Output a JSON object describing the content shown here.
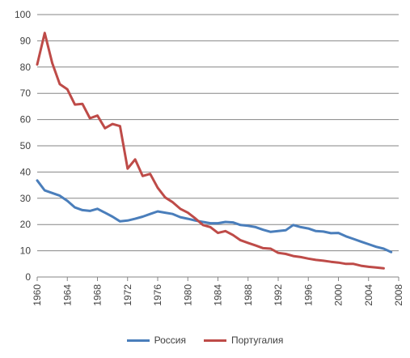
{
  "chart_data": {
    "type": "line",
    "title": "",
    "xlabel": "",
    "ylabel": "",
    "xlim": [
      1960,
      2008
    ],
    "ylim": [
      0,
      100
    ],
    "x_ticks": [
      "1960",
      "1964",
      "1968",
      "1972",
      "1976",
      "1980",
      "1984",
      "1988",
      "1992",
      "1996",
      "2000",
      "2004",
      "2008"
    ],
    "y_ticks": [
      "0",
      "10",
      "20",
      "30",
      "40",
      "50",
      "60",
      "70",
      "80",
      "90",
      "100"
    ],
    "grid": true,
    "legend_position": "bottom",
    "series": [
      {
        "name": "Россия",
        "color": "#4a7ebb",
        "points": [
          [
            1960,
            36.8
          ],
          [
            1961,
            33.0
          ],
          [
            1962,
            32.0
          ],
          [
            1963,
            31.0
          ],
          [
            1964,
            29.0
          ],
          [
            1965,
            26.5
          ],
          [
            1966,
            25.5
          ],
          [
            1967,
            25.2
          ],
          [
            1968,
            26.0
          ],
          [
            1969,
            24.5
          ],
          [
            1970,
            23.0
          ],
          [
            1971,
            21.2
          ],
          [
            1972,
            21.5
          ],
          [
            1973,
            22.2
          ],
          [
            1974,
            23.0
          ],
          [
            1975,
            24.0
          ],
          [
            1976,
            25.0
          ],
          [
            1977,
            24.5
          ],
          [
            1978,
            24.0
          ],
          [
            1979,
            22.8
          ],
          [
            1980,
            22.2
          ],
          [
            1981,
            21.5
          ],
          [
            1982,
            21.0
          ],
          [
            1983,
            20.5
          ],
          [
            1984,
            20.5
          ],
          [
            1985,
            21.0
          ],
          [
            1986,
            20.8
          ],
          [
            1987,
            19.8
          ],
          [
            1988,
            19.5
          ],
          [
            1989,
            19.0
          ],
          [
            1990,
            18.0
          ],
          [
            1991,
            17.2
          ],
          [
            1992,
            17.5
          ],
          [
            1993,
            17.8
          ],
          [
            1994,
            19.8
          ],
          [
            1995,
            19.0
          ],
          [
            1996,
            18.5
          ],
          [
            1997,
            17.5
          ],
          [
            1998,
            17.3
          ],
          [
            1999,
            16.7
          ],
          [
            2000,
            16.8
          ],
          [
            2001,
            15.5
          ],
          [
            2002,
            14.5
          ],
          [
            2003,
            13.5
          ],
          [
            2004,
            12.5
          ],
          [
            2005,
            11.5
          ],
          [
            2006,
            10.8
          ],
          [
            2007,
            9.5
          ]
        ]
      },
      {
        "name": "Португалия",
        "color": "#be4b48",
        "points": [
          [
            1960,
            81.0
          ],
          [
            1961,
            93.0
          ],
          [
            1962,
            81.5
          ],
          [
            1963,
            73.5
          ],
          [
            1964,
            71.5
          ],
          [
            1965,
            65.7
          ],
          [
            1966,
            66.0
          ],
          [
            1967,
            60.5
          ],
          [
            1968,
            61.5
          ],
          [
            1969,
            56.7
          ],
          [
            1970,
            58.3
          ],
          [
            1971,
            57.5
          ],
          [
            1972,
            41.3
          ],
          [
            1973,
            44.8
          ],
          [
            1974,
            38.5
          ],
          [
            1975,
            39.3
          ],
          [
            1976,
            34.0
          ],
          [
            1977,
            30.3
          ],
          [
            1978,
            28.5
          ],
          [
            1979,
            26.0
          ],
          [
            1980,
            24.5
          ],
          [
            1981,
            22.3
          ],
          [
            1982,
            19.8
          ],
          [
            1983,
            19.0
          ],
          [
            1984,
            16.8
          ],
          [
            1985,
            17.5
          ],
          [
            1986,
            16.0
          ],
          [
            1987,
            14.0
          ],
          [
            1988,
            13.0
          ],
          [
            1989,
            12.0
          ],
          [
            1990,
            11.0
          ],
          [
            1991,
            10.8
          ],
          [
            1992,
            9.2
          ],
          [
            1993,
            8.8
          ],
          [
            1994,
            8.0
          ],
          [
            1995,
            7.6
          ],
          [
            1996,
            7.0
          ],
          [
            1997,
            6.5
          ],
          [
            1998,
            6.2
          ],
          [
            1999,
            5.8
          ],
          [
            2000,
            5.5
          ],
          [
            2001,
            5.0
          ],
          [
            2002,
            5.0
          ],
          [
            2003,
            4.3
          ],
          [
            2004,
            3.9
          ],
          [
            2005,
            3.6
          ],
          [
            2006,
            3.3
          ]
        ]
      }
    ]
  }
}
